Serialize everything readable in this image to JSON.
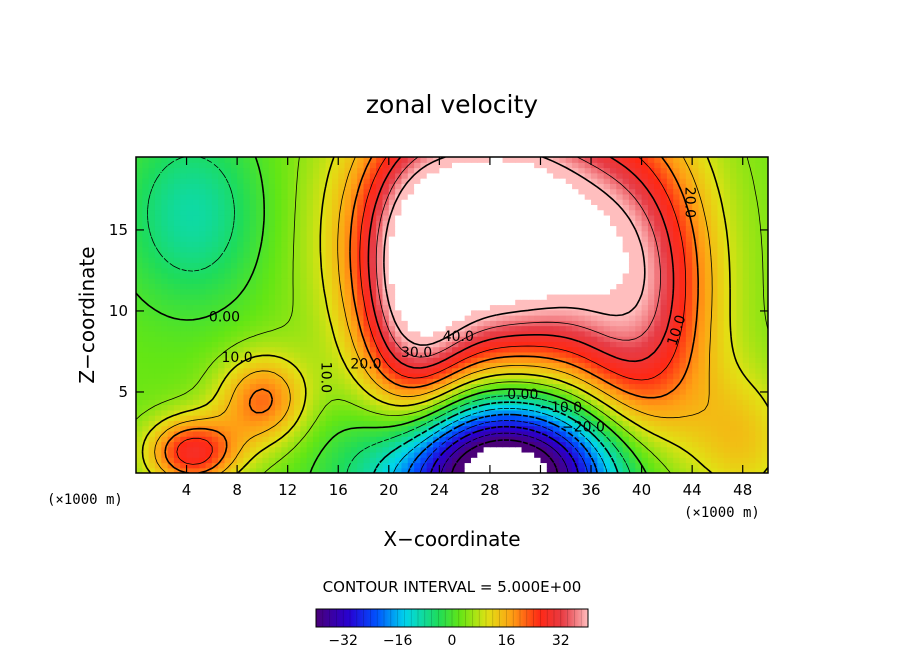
{
  "chart_data": {
    "type": "heatmap",
    "title": "zonal velocity",
    "xlabel": "X−coordinate",
    "ylabel": "Z−coordinate",
    "x_unit": "(×1000 m)",
    "x_unit_right": "(×1000 m)",
    "xlim": [
      0,
      50
    ],
    "ylim": [
      0,
      19.5
    ],
    "x_ticks": [
      4,
      8,
      12,
      16,
      20,
      24,
      28,
      32,
      36,
      40,
      44,
      48
    ],
    "y_ticks": [
      5,
      10,
      15
    ],
    "contour_interval_text": "CONTOUR INTERVAL = 5.000E+00",
    "contour_interval": 5,
    "contour_labels": [
      {
        "text": "40.0",
        "x": 25.5,
        "y": 8.4
      },
      {
        "text": "30.0",
        "x": 22.2,
        "y": 7.4
      },
      {
        "text": "20.0",
        "x": 18.2,
        "y": 6.7
      },
      {
        "text": "20.0",
        "x": 43.8,
        "y": 16.7,
        "rotate": 90
      },
      {
        "text": "10.0",
        "x": 42.8,
        "y": 8.8,
        "rotate": -72
      },
      {
        "text": "10.0",
        "x": 15.0,
        "y": 5.9,
        "rotate": 90
      },
      {
        "text": "10.0",
        "x": 8.0,
        "y": 7.1
      },
      {
        "text": "0.00",
        "x": 7.0,
        "y": 9.6
      },
      {
        "text": "0.00",
        "x": 30.6,
        "y": 4.8
      },
      {
        "text": "−10.0",
        "x": 33.6,
        "y": 4.0
      },
      {
        "text": "−20.0",
        "x": 35.4,
        "y": 2.8
      }
    ],
    "colorbar": {
      "min": -40,
      "max": 40,
      "ticks": [
        -32,
        -16,
        0,
        16,
        32
      ],
      "tick_labels": [
        "−32",
        "−16",
        "0",
        "16",
        "32"
      ]
    },
    "field_features": [
      {
        "x": 29,
        "y": 15,
        "amp": 55,
        "sx": 7,
        "sy": 5.5
      },
      {
        "x": 40,
        "y": 10,
        "amp": 25,
        "sx": 4,
        "sy": 7
      },
      {
        "x": 22,
        "y": 10,
        "amp": 25,
        "sx": 3,
        "sy": 6
      },
      {
        "x": 29,
        "y": 0,
        "amp": -58,
        "sx": 6.5,
        "sy": 3.2
      },
      {
        "x": 4.5,
        "y": 16,
        "amp": -12,
        "sx": 4,
        "sy": 4
      },
      {
        "x": 4.5,
        "y": 1.3,
        "amp": 25,
        "sx": 2.5,
        "sy": 1.5
      },
      {
        "x": 10,
        "y": 4.5,
        "amp": 18,
        "sx": 2.5,
        "sy": 2
      },
      {
        "x": 48,
        "y": 2,
        "amp": 10,
        "sx": 3,
        "sy": 3
      }
    ]
  }
}
